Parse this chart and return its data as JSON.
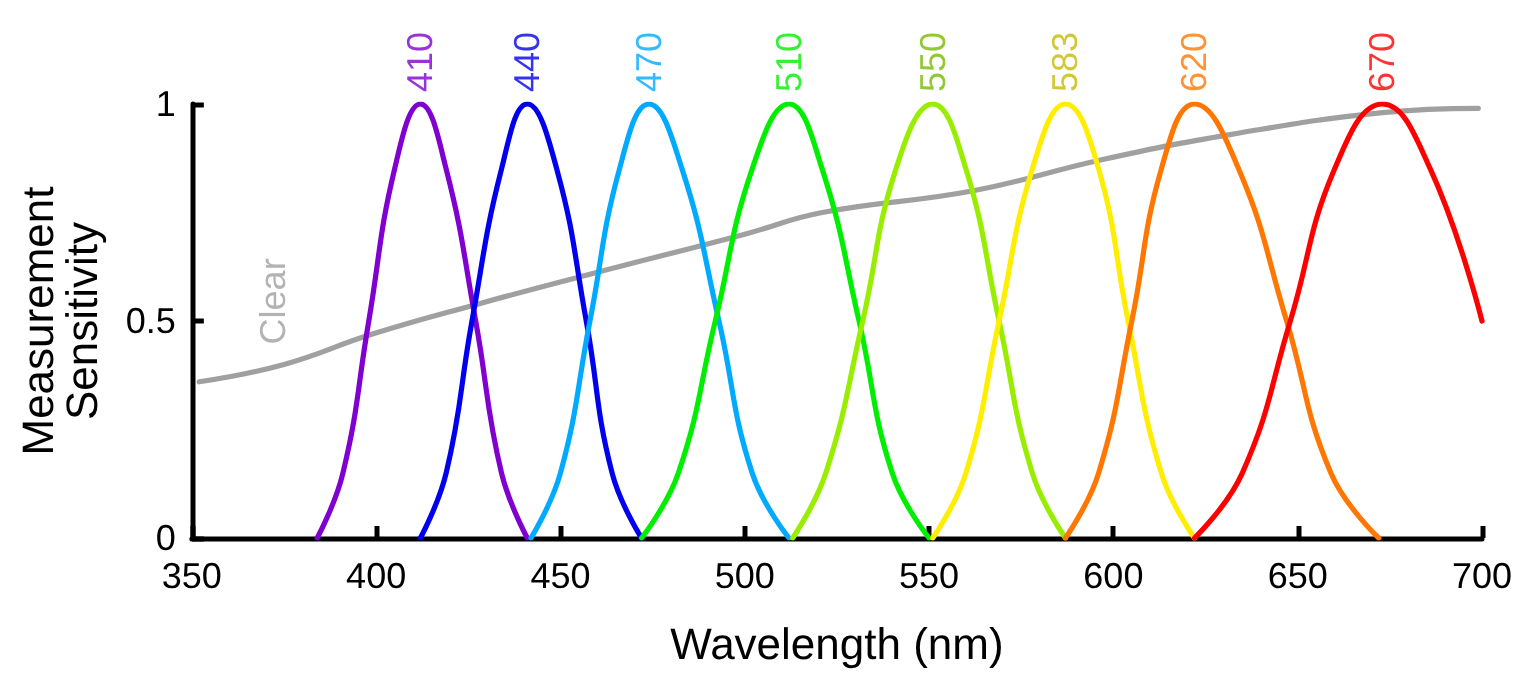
{
  "chart_data": {
    "type": "line",
    "xlabel": "Wavelength (nm)",
    "ylabel": "Measurement Sensitivity",
    "xlim": [
      350,
      700
    ],
    "ylim": [
      0,
      1
    ],
    "xticks": [
      350,
      400,
      450,
      500,
      550,
      600,
      650,
      700
    ],
    "yticks": [
      0,
      0.5,
      1
    ],
    "grid": false,
    "marker": "none",
    "line_style": "solid",
    "series": [
      {
        "color": "#a0a0a0",
        "x": [
          352,
          375,
          399,
          428,
          459,
          500,
          521,
          562,
          596,
          632,
          673,
          699
        ],
        "values": [
          0.36,
          0.4,
          0.47,
          0.54,
          0.61,
          0.7,
          0.75,
          0.8,
          0.87,
          0.93,
          0.98,
          0.99
        ]
      },
      {
        "color": "#8000d0",
        "x": [
          384,
          391,
          398,
          405,
          412,
          419,
          427,
          434,
          441
        ],
        "values": [
          0,
          0.15,
          0.5,
          0.85,
          1,
          0.85,
          0.5,
          0.15,
          0
        ]
      },
      {
        "color": "#0000ee",
        "x": [
          412,
          419,
          426,
          434,
          441,
          449,
          457,
          464,
          472
        ],
        "values": [
          0,
          0.15,
          0.5,
          0.85,
          1,
          0.85,
          0.5,
          0.15,
          0
        ]
      },
      {
        "color": "#00aaff",
        "x": [
          442,
          450,
          458,
          466,
          474,
          483,
          493,
          502,
          512
        ],
        "values": [
          0,
          0.15,
          0.5,
          0.85,
          1,
          0.85,
          0.5,
          0.15,
          0
        ]
      },
      {
        "color": "#00ee00",
        "x": [
          472,
          482,
          492,
          502,
          512,
          521,
          531,
          540,
          550
        ],
        "values": [
          0,
          0.15,
          0.5,
          0.85,
          1,
          0.85,
          0.5,
          0.15,
          0
        ]
      },
      {
        "color": "#99ee00",
        "x": [
          513,
          522,
          532,
          541,
          551,
          560,
          569,
          578,
          587
        ],
        "values": [
          0,
          0.15,
          0.5,
          0.85,
          1,
          0.85,
          0.5,
          0.15,
          0
        ]
      },
      {
        "color": "#ffee00",
        "x": [
          551,
          560,
          569,
          578,
          587,
          596,
          604,
          613,
          622
        ],
        "values": [
          0,
          0.15,
          0.5,
          0.85,
          1,
          0.85,
          0.5,
          0.15,
          0
        ]
      },
      {
        "color": "#ff7700",
        "x": [
          587,
          596,
          605,
          613,
          622,
          634,
          647,
          659,
          672
        ],
        "values": [
          0,
          0.15,
          0.5,
          0.85,
          1,
          0.85,
          0.5,
          0.15,
          0
        ]
      },
      {
        "color": "#ff0000",
        "x": [
          622,
          635,
          648,
          660,
          673,
          686,
          700
        ],
        "values": [
          0,
          0.15,
          0.5,
          0.85,
          1,
          0.85,
          0.5
        ]
      }
    ],
    "annotations": [
      {
        "text": "Clear",
        "x": 372,
        "y": 0.4
      },
      {
        "text": "410",
        "x": 412,
        "y": 1
      },
      {
        "text": "440",
        "x": 441,
        "y": 1
      },
      {
        "text": "470",
        "x": 474,
        "y": 1
      },
      {
        "text": "510",
        "x": 512,
        "y": 1
      },
      {
        "text": "550",
        "x": 551,
        "y": 1
      },
      {
        "text": "583",
        "x": 587,
        "y": 1
      },
      {
        "text": "620",
        "x": 622,
        "y": 1
      },
      {
        "text": "670",
        "x": 673,
        "y": 1
      }
    ]
  }
}
